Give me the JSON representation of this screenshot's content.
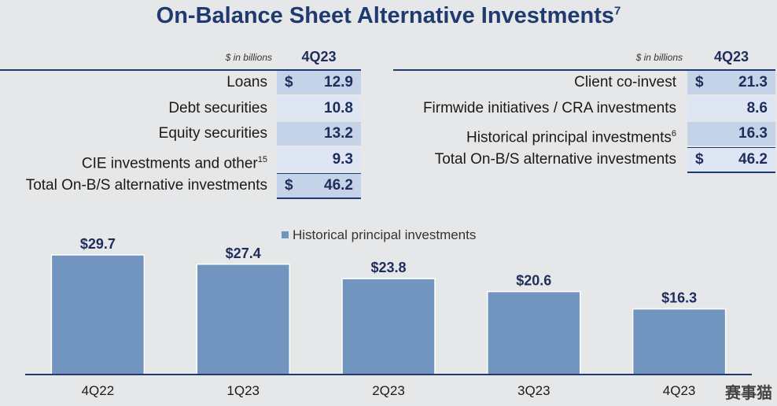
{
  "title": "On-Balance Sheet Alternative Investments",
  "title_footnote": "7",
  "left_table": {
    "unit": "$ in billions",
    "period": "4Q23",
    "rows": [
      {
        "label": "Loans",
        "footnote": "",
        "dollar": "$",
        "value": "12.9"
      },
      {
        "label": "Debt securities",
        "footnote": "",
        "dollar": "",
        "value": "10.8"
      },
      {
        "label": "Equity securities",
        "footnote": "",
        "dollar": "",
        "value": "13.2"
      },
      {
        "label": "CIE investments and other",
        "footnote": "15",
        "dollar": "",
        "value": "9.3"
      },
      {
        "label": "Total On-B/S alternative investments",
        "footnote": "",
        "dollar": "$",
        "value": "46.2"
      }
    ]
  },
  "right_table": {
    "unit": "$ in billions",
    "period": "4Q23",
    "rows": [
      {
        "label": "Client co-invest",
        "footnote": "",
        "dollar": "$",
        "value": "21.3"
      },
      {
        "label": "Firmwide initiatives / CRA investments",
        "footnote": "",
        "dollar": "",
        "value": "8.6"
      },
      {
        "label": "Historical principal investments",
        "footnote": "6",
        "dollar": "",
        "value": "16.3"
      },
      {
        "label": "Total On-B/S alternative investments",
        "footnote": "",
        "dollar": "$",
        "value": "46.2"
      }
    ]
  },
  "chart_data": {
    "type": "bar",
    "categories": [
      "4Q22",
      "1Q23",
      "2Q23",
      "3Q23",
      "4Q23"
    ],
    "series": [
      {
        "name": "Historical principal investments",
        "values": [
          29.7,
          27.4,
          23.8,
          20.6,
          16.3
        ]
      }
    ],
    "data_labels": [
      "$29.7",
      "$27.4",
      "$23.8",
      "$20.6",
      "$16.3"
    ],
    "legend_position": "top",
    "colors": {
      "bar": "#7295bf",
      "axis": "#1f3a70"
    }
  },
  "watermark": "赛事猫",
  "colors": {
    "title": "#1f3a70",
    "shade_dark": "#c4d3e8",
    "shade_light": "#dde6f2",
    "background": "#e6e7e8"
  }
}
